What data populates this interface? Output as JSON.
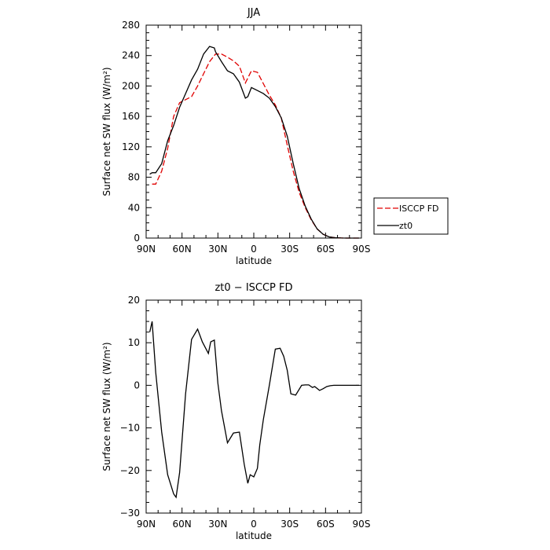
{
  "chart_data": [
    {
      "type": "line",
      "title": "JJA",
      "xlabel": "latitude",
      "ylabel": "Surface net SW flux (W/m²)",
      "xticks": [
        "90N",
        "60N",
        "30N",
        "0",
        "30S",
        "60S",
        "90S"
      ],
      "xlim": [
        90,
        -90
      ],
      "ylim": [
        0,
        280
      ],
      "yticks": [
        "0",
        "40",
        "80",
        "120",
        "160",
        "200",
        "240",
        "280"
      ],
      "legend": "outside-right",
      "series": [
        {
          "name": "ISCCP FD",
          "color": "#e00000",
          "dash": "dashed",
          "x": [
            85,
            82,
            77,
            72,
            67,
            62,
            57,
            52,
            47,
            42,
            37,
            32,
            27,
            22,
            17,
            12,
            7,
            2,
            -3,
            -8,
            -13,
            -18,
            -23,
            -28,
            -33,
            -38,
            -43,
            -48,
            -53,
            -58,
            -63,
            -68,
            -73,
            -78,
            -83,
            -88
          ],
          "y": [
            71,
            71,
            88,
            118,
            160,
            178,
            182,
            186,
            200,
            216,
            232,
            242,
            242,
            238,
            233,
            226,
            204,
            220,
            218,
            203,
            188,
            175,
            158,
            122,
            88,
            60,
            40,
            24,
            12,
            5,
            1.5,
            0.5,
            0.1,
            0,
            0,
            0
          ]
        },
        {
          "name": "zt0",
          "color": "#000000",
          "dash": "solid",
          "x": [
            87,
            85,
            82,
            77,
            72,
            67,
            62,
            57,
            52,
            47,
            42,
            37,
            33,
            32,
            27,
            22,
            17,
            12,
            7,
            5,
            2,
            -3,
            -8,
            -13,
            -18,
            -23,
            -28,
            -33,
            -38,
            -43,
            -48,
            -53,
            -58,
            -63,
            -68,
            -73,
            -78,
            -83,
            -88
          ],
          "y": [
            84,
            86,
            86,
            98,
            128,
            148,
            172,
            190,
            208,
            222,
            242,
            252,
            250,
            245,
            232,
            220,
            216,
            205,
            184,
            186,
            198,
            194,
            190,
            184,
            173,
            158,
            134,
            98,
            65,
            42,
            25,
            12,
            5,
            1.5,
            0.5,
            0.1,
            0,
            0,
            0
          ]
        }
      ]
    },
    {
      "type": "line",
      "title": "zt0 − ISCCP FD",
      "xlabel": "latitude",
      "ylabel": "Surface net SW flux (W/m²)",
      "xticks": [
        "90N",
        "60N",
        "30N",
        "0",
        "30S",
        "60S",
        "90S"
      ],
      "xlim": [
        90,
        -90
      ],
      "ylim": [
        -30,
        20
      ],
      "yticks": [
        "−30",
        "−20",
        "−10",
        "0",
        "10",
        "20"
      ],
      "series": [
        {
          "name": "",
          "color": "#000000",
          "dash": "solid",
          "x": [
            87,
            85,
            82,
            77,
            72,
            67,
            65,
            62,
            57,
            52,
            47,
            43,
            38,
            36,
            33,
            30,
            27,
            22,
            17,
            12,
            8,
            5,
            3,
            0,
            -3,
            -5,
            -8,
            -13,
            -18,
            -22,
            -25,
            -28,
            -31,
            -35,
            -40,
            -43,
            -46,
            -49,
            -51,
            -55,
            -58,
            -61,
            -64,
            -67,
            -73,
            -78,
            -83,
            -88
          ],
          "y": [
            12.5,
            15,
            3,
            -11,
            -21,
            -25.5,
            -26.3,
            -20.5,
            -2,
            10.8,
            13.2,
            10.2,
            7.5,
            10.2,
            10.6,
            0.5,
            -6,
            -13.5,
            -11.2,
            -11,
            -18.5,
            -23,
            -21,
            -21.5,
            -19.5,
            -14,
            -8,
            0,
            8.5,
            8.7,
            6.8,
            3.5,
            -2,
            -2.3,
            0,
            0.1,
            0.1,
            -0.5,
            -0.3,
            -1.2,
            -0.8,
            -0.3,
            -0.1,
            0,
            0,
            0,
            0,
            0
          ]
        }
      ]
    }
  ]
}
